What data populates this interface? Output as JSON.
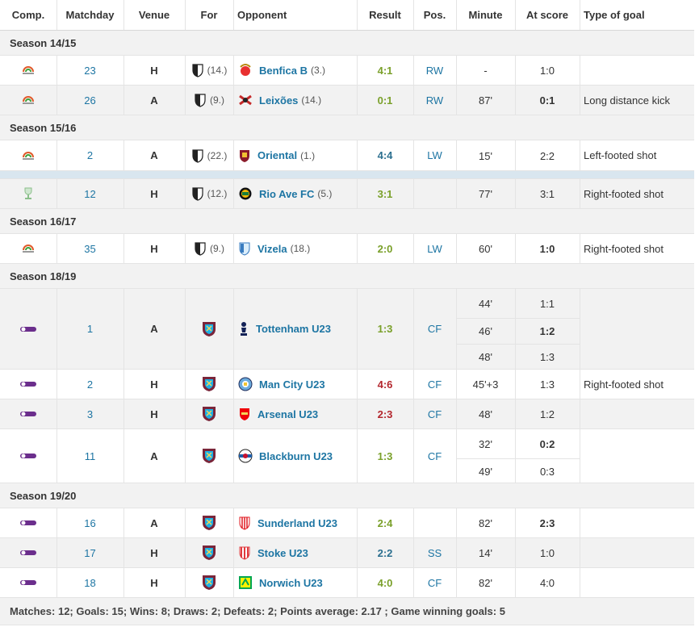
{
  "headers": [
    "Comp.",
    "Matchday",
    "Venue",
    "For",
    "Opponent",
    "Result",
    "Pos.",
    "Minute",
    "At score",
    "Type of goal"
  ],
  "colors": {
    "win": "#7aa02a",
    "draw": "#2b6f8f",
    "loss": "#b3262d",
    "link": "#1d75a3"
  },
  "seasons": [
    {
      "label": "Season 14/15"
    },
    {
      "label": "Season 15/16"
    },
    {
      "label": "Season 16/17"
    },
    {
      "label": "Season 18/19"
    },
    {
      "label": "Season 19/20"
    }
  ],
  "matches": [
    {
      "comp": "segunda-liga-icon",
      "matchday": "23",
      "venue": "H",
      "for_icon": "vitoria-guimaraes-b-icon",
      "for_rank": "(14.)",
      "opp_icon": "benfica-icon",
      "opponent": "Benfica B",
      "opp_rank": "(3.)",
      "result": "4:1",
      "res": "win",
      "pos": "RW",
      "minutes": [
        "-"
      ],
      "scores": [
        "1:0"
      ],
      "score_bold": [
        false
      ],
      "goal_type": ""
    },
    {
      "comp": "segunda-liga-icon",
      "matchday": "26",
      "venue": "A",
      "for_icon": "vitoria-guimaraes-b-icon",
      "for_rank": "(9.)",
      "opp_icon": "leixoes-icon",
      "opponent": "Leixões",
      "opp_rank": "(14.)",
      "result": "0:1",
      "res": "win",
      "pos": "RW",
      "minutes": [
        "87'"
      ],
      "scores": [
        "0:1"
      ],
      "score_bold": [
        true
      ],
      "goal_type": "Long distance kick"
    },
    {
      "comp": "segunda-liga-icon",
      "matchday": "2",
      "venue": "A",
      "for_icon": "vitoria-guimaraes-b-icon",
      "for_rank": "(22.)",
      "opp_icon": "oriental-icon",
      "opponent": "Oriental",
      "opp_rank": "(1.)",
      "result": "4:4",
      "res": "draw",
      "pos": "LW",
      "minutes": [
        "15'"
      ],
      "scores": [
        "2:2"
      ],
      "score_bold": [
        false
      ],
      "goal_type": "Left-footed shot"
    },
    {
      "comp": "cup-icon",
      "matchday": "12",
      "venue": "H",
      "for_icon": "vitoria-guimaraes-b-icon",
      "for_rank": "(12.)",
      "opp_icon": "rio-ave-icon",
      "opponent": "Rio Ave FC",
      "opp_rank": "(5.)",
      "result": "3:1",
      "res": "win",
      "pos": "",
      "minutes": [
        "77'"
      ],
      "scores": [
        "3:1"
      ],
      "score_bold": [
        false
      ],
      "goal_type": "Right-footed shot"
    },
    {
      "comp": "segunda-liga-icon",
      "matchday": "35",
      "venue": "H",
      "for_icon": "vitoria-guimaraes-b-icon",
      "for_rank": "(9.)",
      "opp_icon": "vizela-icon",
      "opponent": "Vizela",
      "opp_rank": "(18.)",
      "result": "2:0",
      "res": "win",
      "pos": "LW",
      "minutes": [
        "60'"
      ],
      "scores": [
        "1:0"
      ],
      "score_bold": [
        true
      ],
      "goal_type": "Right-footed shot"
    },
    {
      "comp": "premier-league-2-icon",
      "matchday": "1",
      "venue": "A",
      "for_icon": "west-ham-icon",
      "for_rank": "",
      "opp_icon": "tottenham-icon",
      "opponent": "Tottenham U23",
      "opp_rank": "",
      "result": "1:3",
      "res": "win",
      "pos": "CF",
      "minutes": [
        "44'",
        "46'",
        "48'"
      ],
      "scores": [
        "1:1",
        "1:2",
        "1:3"
      ],
      "score_bold": [
        false,
        true,
        false
      ],
      "goal_type": ""
    },
    {
      "comp": "premier-league-2-icon",
      "matchday": "2",
      "venue": "H",
      "for_icon": "west-ham-icon",
      "for_rank": "",
      "opp_icon": "man-city-icon",
      "opponent": "Man City U23",
      "opp_rank": "",
      "result": "4:6",
      "res": "loss",
      "pos": "CF",
      "minutes": [
        "45'+3"
      ],
      "scores": [
        "1:3"
      ],
      "score_bold": [
        false
      ],
      "goal_type": "Right-footed shot"
    },
    {
      "comp": "premier-league-2-icon",
      "matchday": "3",
      "venue": "H",
      "for_icon": "west-ham-icon",
      "for_rank": "",
      "opp_icon": "arsenal-icon",
      "opponent": "Arsenal U23",
      "opp_rank": "",
      "result": "2:3",
      "res": "loss",
      "pos": "CF",
      "minutes": [
        "48'"
      ],
      "scores": [
        "1:2"
      ],
      "score_bold": [
        false
      ],
      "goal_type": ""
    },
    {
      "comp": "premier-league-2-icon",
      "matchday": "11",
      "venue": "A",
      "for_icon": "west-ham-icon",
      "for_rank": "",
      "opp_icon": "blackburn-icon",
      "opponent": "Blackburn U23",
      "opp_rank": "",
      "result": "1:3",
      "res": "win",
      "pos": "CF",
      "minutes": [
        "32'",
        "49'"
      ],
      "scores": [
        "0:2",
        "0:3"
      ],
      "score_bold": [
        true,
        false
      ],
      "goal_type": ""
    },
    {
      "comp": "premier-league-2-icon",
      "matchday": "16",
      "venue": "A",
      "for_icon": "west-ham-icon",
      "for_rank": "",
      "opp_icon": "sunderland-icon",
      "opponent": "Sunderland U23",
      "opp_rank": "",
      "result": "2:4",
      "res": "win",
      "pos": "",
      "minutes": [
        "82'"
      ],
      "scores": [
        "2:3"
      ],
      "score_bold": [
        true
      ],
      "goal_type": ""
    },
    {
      "comp": "premier-league-2-icon",
      "matchday": "17",
      "venue": "H",
      "for_icon": "west-ham-icon",
      "for_rank": "",
      "opp_icon": "stoke-icon",
      "opponent": "Stoke U23",
      "opp_rank": "",
      "result": "2:2",
      "res": "draw",
      "pos": "SS",
      "minutes": [
        "14'"
      ],
      "scores": [
        "1:0"
      ],
      "score_bold": [
        false
      ],
      "goal_type": ""
    },
    {
      "comp": "premier-league-2-icon",
      "matchday": "18",
      "venue": "H",
      "for_icon": "west-ham-icon",
      "for_rank": "",
      "opp_icon": "norwich-icon",
      "opponent": "Norwich U23",
      "opp_rank": "",
      "result": "4:0",
      "res": "win",
      "pos": "CF",
      "minutes": [
        "82'"
      ],
      "scores": [
        "4:0"
      ],
      "score_bold": [
        false
      ],
      "goal_type": ""
    }
  ],
  "footer": "Matches: 12; Goals: 15; Wins: 8; Draws: 2; Defeats: 2; Points average: 2.17 ; Game winning goals: 5"
}
